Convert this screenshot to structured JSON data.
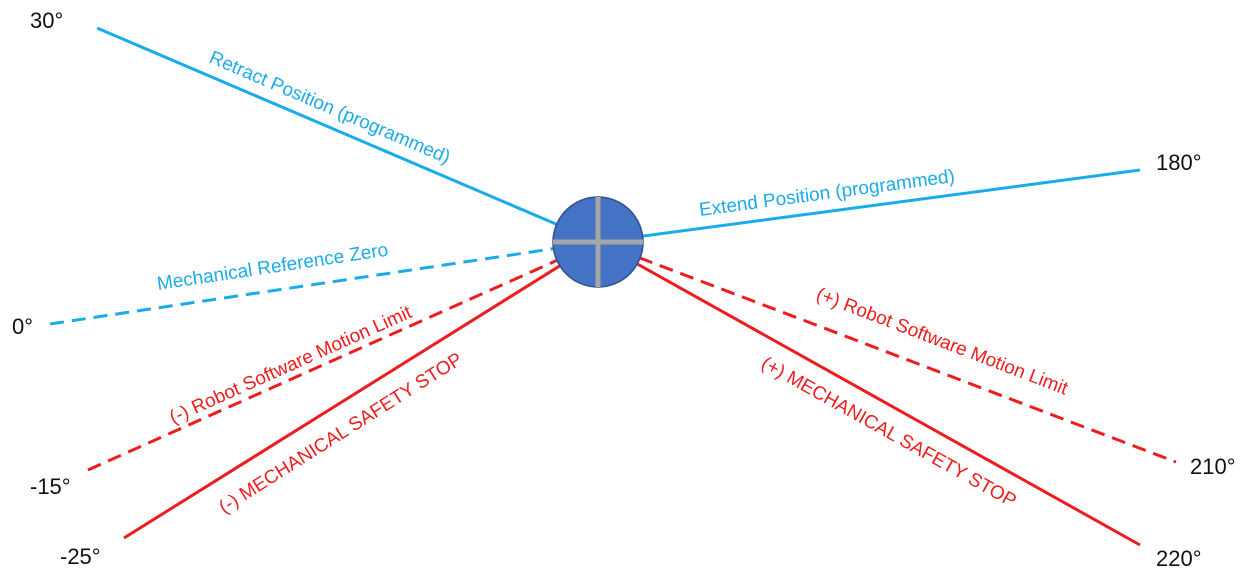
{
  "colors": {
    "blue": "#1aabea",
    "red": "#ee1c1c",
    "hub_fill": "#4472c4",
    "hub_stroke": "#2f528f",
    "cross": "#a6a6a6",
    "text": "#111111"
  },
  "lines": [
    {
      "key": "retract",
      "angle_label": "30°",
      "label": "Retract Position (programmed)",
      "color": "blue",
      "style": "solid"
    },
    {
      "key": "extend",
      "angle_label": "180°",
      "label": "Extend Position (programmed)",
      "color": "blue",
      "style": "solid"
    },
    {
      "key": "reference_zero",
      "angle_label": "0°",
      "label": "Mechanical Reference Zero",
      "color": "blue",
      "style": "dashed"
    },
    {
      "key": "neg_soft_limit",
      "angle_label": "-15°",
      "label": "(-) Robot Software Motion Limit",
      "color": "red",
      "style": "dashed"
    },
    {
      "key": "neg_safety_stop",
      "angle_label": "-25°",
      "label": "(-) MECHANICAL SAFETY STOP",
      "color": "red",
      "style": "solid"
    },
    {
      "key": "pos_soft_limit",
      "angle_label": "210°",
      "label": "(+) Robot Software Motion Limit",
      "color": "red",
      "style": "dashed"
    },
    {
      "key": "pos_safety_stop",
      "angle_label": "220°",
      "label": "(+) MECHANICAL SAFETY STOP",
      "color": "red",
      "style": "solid"
    }
  ]
}
